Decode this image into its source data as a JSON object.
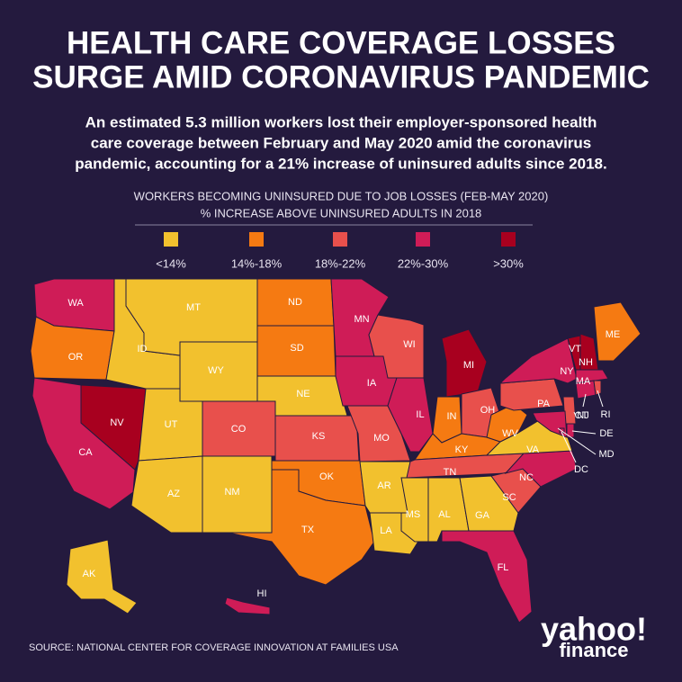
{
  "header": {
    "title": [
      "HEALTH CARE COVERAGE LOSSES",
      "SURGE AMID CORONAVIRUS PANDEMIC"
    ],
    "subtitle": [
      "An estimated 5.3 million workers lost their employer-sponsored health",
      "care coverage between February and May 2020 amid the coronavirus",
      "pandemic, accounting for a 21% increase of uninsured adults since 2018."
    ]
  },
  "legend": {
    "title": [
      "WORKERS BECOMING UNINSURED DUE TO JOB LOSSES (FEB-MAY 2020)",
      "% INCREASE ABOVE UNINSURED ADULTS IN 2018"
    ],
    "bins": [
      {
        "label": "<14%",
        "color": "#f2c12e"
      },
      {
        "label": "14%-18%",
        "color": "#f57a12"
      },
      {
        "label": "18%-22%",
        "color": "#e8504c"
      },
      {
        "label": "22%-30%",
        "color": "#cf1c57"
      },
      {
        "label": ">30%",
        "color": "#a8001f"
      }
    ]
  },
  "states": [
    {
      "abbr": "WA",
      "bin": 3
    },
    {
      "abbr": "OR",
      "bin": 1
    },
    {
      "abbr": "CA",
      "bin": 3
    },
    {
      "abbr": "NV",
      "bin": 4
    },
    {
      "abbr": "ID",
      "bin": 0
    },
    {
      "abbr": "MT",
      "bin": 0
    },
    {
      "abbr": "WY",
      "bin": 0
    },
    {
      "abbr": "UT",
      "bin": 0
    },
    {
      "abbr": "AZ",
      "bin": 0
    },
    {
      "abbr": "NM",
      "bin": 0
    },
    {
      "abbr": "CO",
      "bin": 2
    },
    {
      "abbr": "ND",
      "bin": 1
    },
    {
      "abbr": "SD",
      "bin": 1
    },
    {
      "abbr": "NE",
      "bin": 0
    },
    {
      "abbr": "KS",
      "bin": 2
    },
    {
      "abbr": "OK",
      "bin": 1
    },
    {
      "abbr": "TX",
      "bin": 1
    },
    {
      "abbr": "MN",
      "bin": 3
    },
    {
      "abbr": "IA",
      "bin": 3
    },
    {
      "abbr": "MO",
      "bin": 2
    },
    {
      "abbr": "AR",
      "bin": 0
    },
    {
      "abbr": "LA",
      "bin": 0
    },
    {
      "abbr": "WI",
      "bin": 2
    },
    {
      "abbr": "IL",
      "bin": 3
    },
    {
      "abbr": "MI",
      "bin": 4
    },
    {
      "abbr": "IN",
      "bin": 1
    },
    {
      "abbr": "OH",
      "bin": 2
    },
    {
      "abbr": "KY",
      "bin": 1
    },
    {
      "abbr": "TN",
      "bin": 2
    },
    {
      "abbr": "MS",
      "bin": 0
    },
    {
      "abbr": "AL",
      "bin": 0
    },
    {
      "abbr": "GA",
      "bin": 0
    },
    {
      "abbr": "FL",
      "bin": 3
    },
    {
      "abbr": "SC",
      "bin": 2
    },
    {
      "abbr": "NC",
      "bin": 3
    },
    {
      "abbr": "VA",
      "bin": 0
    },
    {
      "abbr": "WV",
      "bin": 1
    },
    {
      "abbr": "PA",
      "bin": 2
    },
    {
      "abbr": "NY",
      "bin": 3
    },
    {
      "abbr": "NJ",
      "bin": 2
    },
    {
      "abbr": "DE",
      "bin": 3
    },
    {
      "abbr": "MD",
      "bin": 3
    },
    {
      "abbr": "DC",
      "bin": 3
    },
    {
      "abbr": "VT",
      "bin": 4
    },
    {
      "abbr": "NH",
      "bin": 4
    },
    {
      "abbr": "ME",
      "bin": 1
    },
    {
      "abbr": "MA",
      "bin": 3
    },
    {
      "abbr": "CT",
      "bin": 3
    },
    {
      "abbr": "RI",
      "bin": 2
    },
    {
      "abbr": "AK",
      "bin": 0
    },
    {
      "abbr": "HI",
      "bin": 3
    }
  ],
  "source": "SOURCE:  NATIONAL CENTER FOR COVERAGE INNOVATION AT FAMILIES USA",
  "logo": {
    "brand": "yahoo!",
    "product": "finance"
  }
}
